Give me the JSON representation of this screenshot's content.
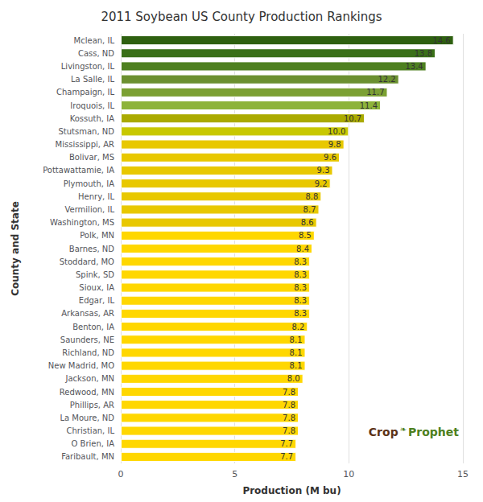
{
  "chart_data": {
    "type": "bar",
    "orientation": "horizontal",
    "title": "2011 Soybean US County Production Rankings",
    "xlabel": "Production (M bu)",
    "ylabel": "County and State",
    "categories": [
      "Mclean, IL",
      "Cass, ND",
      "Livingston, IL",
      "La Salle, IL",
      "Champaign, IL",
      "Iroquois, IL",
      "Kossuth, IA",
      "Stutsman, ND",
      "Mississippi, AR",
      "Bolivar, MS",
      "Pottawattamie, IA",
      "Plymouth, IA",
      "Henry, IL",
      "Vermilion, IL",
      "Washington, MS",
      "Polk, MN",
      "Barnes, ND",
      "Stoddard, MO",
      "Spink, SD",
      "Sioux, IA",
      "Edgar, IL",
      "Arkansas, AR",
      "Benton, IA",
      "Saunders, NE",
      "Richland, ND",
      "New Madrid, MO",
      "Jackson, MN",
      "Redwood, MN",
      "Phillips, AR",
      "La Moure, ND",
      "Christian, IL",
      "O Brien, IA",
      "Faribault, MN"
    ],
    "values": [
      14.6,
      13.8,
      13.4,
      12.2,
      11.7,
      11.4,
      10.7,
      10.0,
      9.8,
      9.6,
      9.3,
      9.2,
      8.8,
      8.7,
      8.6,
      8.5,
      8.4,
      8.3,
      8.3,
      8.3,
      8.3,
      8.3,
      8.2,
      8.1,
      8.1,
      8.1,
      8.0,
      7.8,
      7.8,
      7.8,
      7.8,
      7.7,
      7.7
    ],
    "value_labels": [
      "14.6",
      "13.8",
      "13.4",
      "12.2",
      "11.7",
      "11.4",
      "10.7",
      "10.0",
      "9.8",
      "9.6",
      "9.3",
      "9.2",
      "8.8",
      "8.7",
      "8.6",
      "8.5",
      "8.4",
      "8.3",
      "8.3",
      "8.3",
      "8.3",
      "8.3",
      "8.2",
      "8.1",
      "8.1",
      "8.1",
      "8.0",
      "7.8",
      "7.8",
      "7.8",
      "7.8",
      "7.7",
      "7.7"
    ],
    "colors": [
      "#2E6010",
      "#3A7018",
      "#4E8020",
      "#6B9030",
      "#7BA032",
      "#8DB33A",
      "#AAAA00",
      "#C8C800",
      "#E8C800",
      "#E8C800",
      "#E8C800",
      "#E8C800",
      "#E8C800",
      "#E8C800",
      "#E8C800",
      "#FFD700",
      "#FFD700",
      "#FFD700",
      "#FFD700",
      "#FFD700",
      "#FFD700",
      "#FFD700",
      "#FFD700",
      "#FFD700",
      "#FFD700",
      "#FFD700",
      "#FFD700",
      "#FFD700",
      "#FFD700",
      "#FFD700",
      "#FFD700",
      "#FFD700",
      "#FFD700"
    ],
    "xlim": [
      0,
      15
    ],
    "xticks": [
      0,
      5,
      10,
      15
    ],
    "grid": true,
    "data_labels": true,
    "annotations": [
      {
        "text": "Crop",
        "color": "#5C3317"
      },
      {
        "text": "❧",
        "color": "#4E8020"
      },
      {
        "text": "Prophet",
        "color": "#4E8020"
      }
    ]
  }
}
